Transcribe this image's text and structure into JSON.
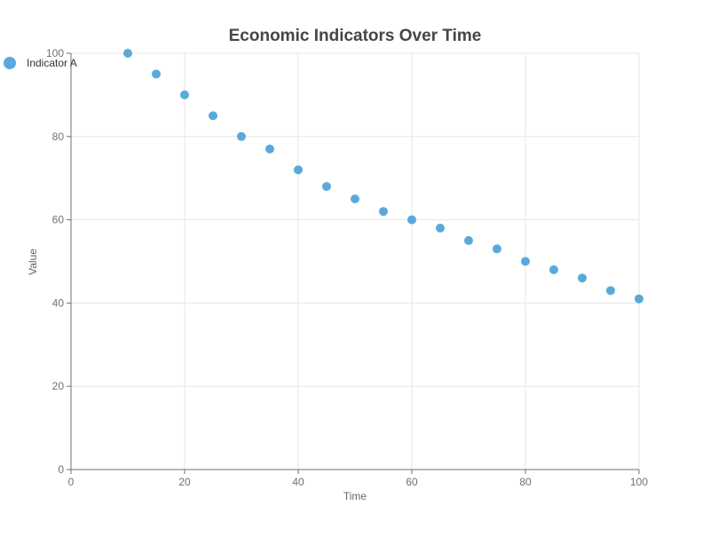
{
  "chart_data": {
    "type": "scatter",
    "title": "Economic Indicators Over Time",
    "xlabel": "Time",
    "ylabel": "Value",
    "xlim": [
      0,
      100
    ],
    "ylim": [
      0,
      100
    ],
    "x_ticks": [
      0,
      20,
      40,
      60,
      80,
      100
    ],
    "y_ticks": [
      0,
      20,
      40,
      60,
      80,
      100
    ],
    "grid": true,
    "legend_position": "top-left",
    "series": [
      {
        "name": "Indicator A",
        "color": "#5aa9dd",
        "x": [
          10,
          15,
          20,
          25,
          30,
          35,
          40,
          45,
          50,
          55,
          60,
          65,
          70,
          75,
          80,
          85,
          90,
          95,
          100
        ],
        "y": [
          100,
          95,
          90,
          85,
          80,
          77,
          72,
          68,
          65,
          62,
          60,
          58,
          55,
          53,
          50,
          48,
          46,
          43,
          41
        ]
      }
    ]
  }
}
